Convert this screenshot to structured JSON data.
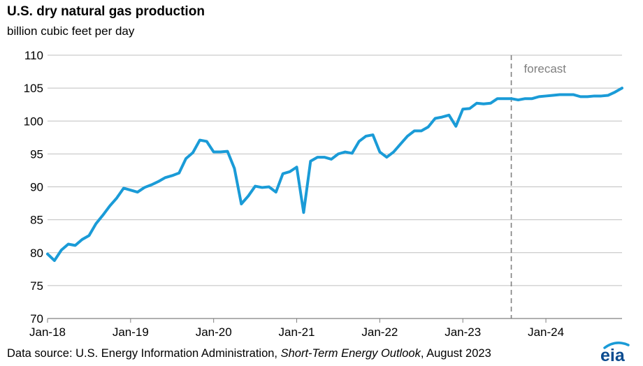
{
  "header": {
    "title": "U.S. dry natural gas production",
    "subtitle": "billion cubic feet per day"
  },
  "footer": {
    "source_prefix": "Data source: U.S. Energy Information Administration, ",
    "source_publication": "Short-Term Energy Outlook",
    "source_suffix": ", August 2023",
    "logo_text": "eia"
  },
  "colors": {
    "series": "#1a9bd7",
    "grid": "#bfbfbf",
    "axis": "#808080",
    "forecast_line": "#7f7f7f",
    "forecast_label": "#7f7f7f",
    "logo_text": "#0a4b8f",
    "logo_accent": "#1a9bd7"
  },
  "chart_data": {
    "type": "line",
    "title": "U.S. dry natural gas production",
    "ylabel": "billion cubic feet per day",
    "xlabel": "",
    "ylim": [
      70,
      110
    ],
    "yticks": [
      70,
      75,
      80,
      85,
      90,
      95,
      100,
      105,
      110
    ],
    "xlim": [
      "2018-01",
      "2024-12"
    ],
    "xtick_labels": [
      "Jan-18",
      "Jan-19",
      "Jan-20",
      "Jan-21",
      "Jan-22",
      "Jan-23",
      "Jan-24"
    ],
    "grid": true,
    "forecast_start": "2023-08",
    "forecast_label": "forecast",
    "series": [
      {
        "x": [
          "2018-01",
          "2018-02",
          "2018-03",
          "2018-04",
          "2018-05",
          "2018-06",
          "2018-07",
          "2018-08",
          "2018-09",
          "2018-10",
          "2018-11",
          "2018-12",
          "2019-01",
          "2019-02",
          "2019-03",
          "2019-04",
          "2019-05",
          "2019-06",
          "2019-07",
          "2019-08",
          "2019-09",
          "2019-10",
          "2019-11",
          "2019-12",
          "2020-01",
          "2020-02",
          "2020-03",
          "2020-04",
          "2020-05",
          "2020-06",
          "2020-07",
          "2020-08",
          "2020-09",
          "2020-10",
          "2020-11",
          "2020-12",
          "2021-01",
          "2021-02",
          "2021-03",
          "2021-04",
          "2021-05",
          "2021-06",
          "2021-07",
          "2021-08",
          "2021-09",
          "2021-10",
          "2021-11",
          "2021-12",
          "2022-01",
          "2022-02",
          "2022-03",
          "2022-04",
          "2022-05",
          "2022-06",
          "2022-07",
          "2022-08",
          "2022-09",
          "2022-10",
          "2022-11",
          "2022-12",
          "2023-01",
          "2023-02",
          "2023-03",
          "2023-04",
          "2023-05",
          "2023-06",
          "2023-07",
          "2023-08",
          "2023-09",
          "2023-10",
          "2023-11",
          "2023-12",
          "2024-01",
          "2024-02",
          "2024-03",
          "2024-04",
          "2024-05",
          "2024-06",
          "2024-07",
          "2024-08",
          "2024-09",
          "2024-10",
          "2024-11",
          "2024-12"
        ],
        "values": [
          79.8,
          78.8,
          80.4,
          81.3,
          81.1,
          82.0,
          82.6,
          84.4,
          85.7,
          87.1,
          88.3,
          89.8,
          89.5,
          89.2,
          89.9,
          90.3,
          90.8,
          91.4,
          91.7,
          92.1,
          94.3,
          95.2,
          97.1,
          96.9,
          95.3,
          95.3,
          95.4,
          92.8,
          87.4,
          88.6,
          90.1,
          89.9,
          90.0,
          89.2,
          92.0,
          92.3,
          93.0,
          86.1,
          93.9,
          94.5,
          94.5,
          94.2,
          95.0,
          95.3,
          95.1,
          96.9,
          97.7,
          97.9,
          95.3,
          94.5,
          95.3,
          96.5,
          97.7,
          98.5,
          98.5,
          99.1,
          100.4,
          100.6,
          100.9,
          99.2,
          101.8,
          101.9,
          102.7,
          102.6,
          102.7,
          103.4,
          103.4,
          103.4,
          103.2,
          103.4,
          103.4,
          103.7,
          103.8,
          103.9,
          104.0,
          104.0,
          104.0,
          103.7,
          103.7,
          103.8,
          103.8,
          103.9,
          104.4,
          105.0
        ]
      }
    ]
  }
}
